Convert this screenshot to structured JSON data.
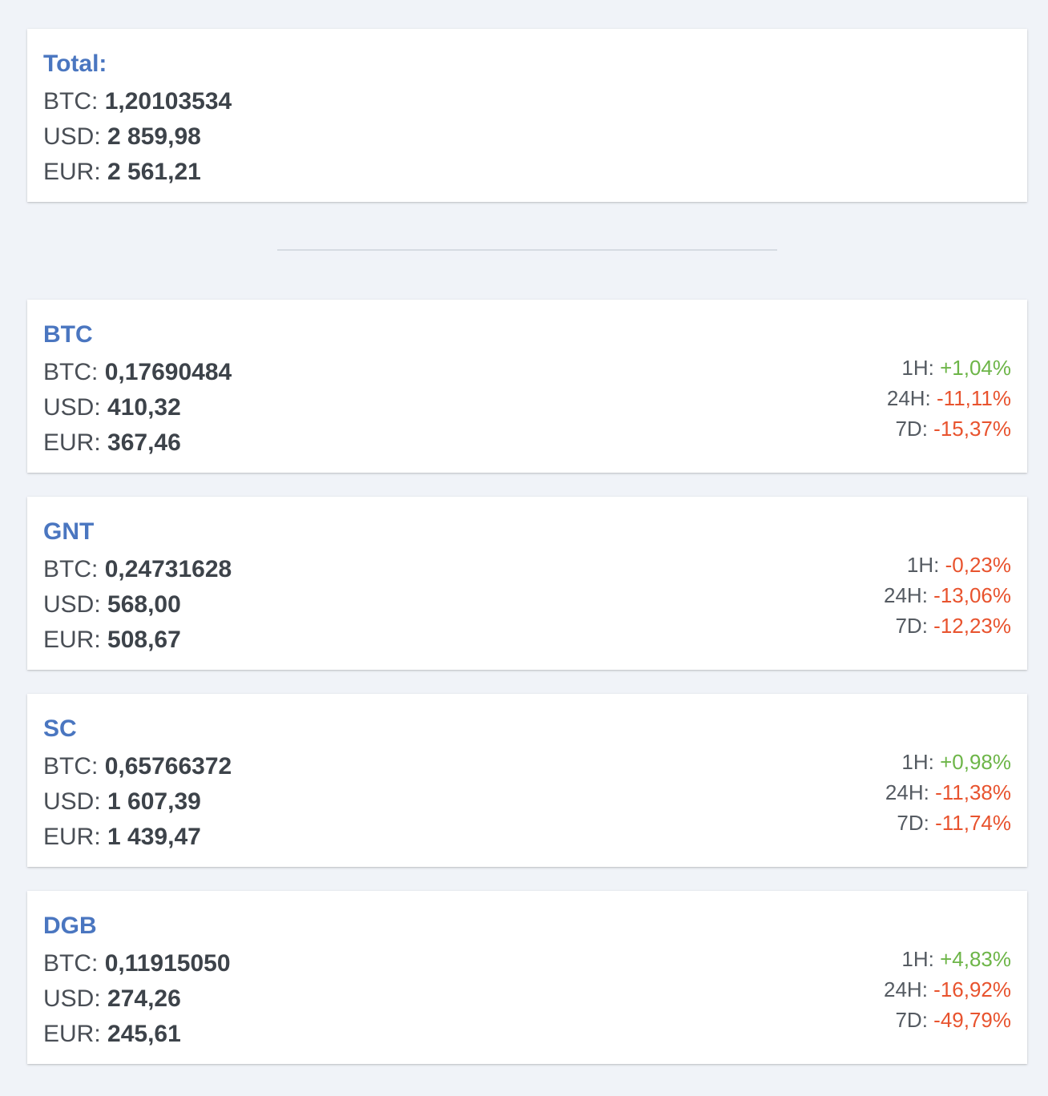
{
  "total": {
    "title": "Total:",
    "rows": [
      {
        "label": "BTC:",
        "value": "1,20103534"
      },
      {
        "label": "USD:",
        "value": "2 859,98"
      },
      {
        "label": "EUR:",
        "value": "2 561,21"
      }
    ]
  },
  "coins": [
    {
      "symbol": "BTC",
      "rows": [
        {
          "label": "BTC:",
          "value": "0,17690484"
        },
        {
          "label": "USD:",
          "value": "410,32"
        },
        {
          "label": "EUR:",
          "value": "367,46"
        }
      ],
      "changes": [
        {
          "label": "1H:",
          "value": "+1,04%",
          "direction": "positive"
        },
        {
          "label": "24H:",
          "value": "-11,11%",
          "direction": "negative"
        },
        {
          "label": "7D:",
          "value": "-15,37%",
          "direction": "negative"
        }
      ]
    },
    {
      "symbol": "GNT",
      "rows": [
        {
          "label": "BTC:",
          "value": "0,24731628"
        },
        {
          "label": "USD:",
          "value": "568,00"
        },
        {
          "label": "EUR:",
          "value": "508,67"
        }
      ],
      "changes": [
        {
          "label": "1H:",
          "value": "-0,23%",
          "direction": "negative"
        },
        {
          "label": "24H:",
          "value": "-13,06%",
          "direction": "negative"
        },
        {
          "label": "7D:",
          "value": "-12,23%",
          "direction": "negative"
        }
      ]
    },
    {
      "symbol": "SC",
      "rows": [
        {
          "label": "BTC:",
          "value": "0,65766372"
        },
        {
          "label": "USD:",
          "value": "1 607,39"
        },
        {
          "label": "EUR:",
          "value": "1 439,47"
        }
      ],
      "changes": [
        {
          "label": "1H:",
          "value": "+0,98%",
          "direction": "positive"
        },
        {
          "label": "24H:",
          "value": "-11,38%",
          "direction": "negative"
        },
        {
          "label": "7D:",
          "value": "-11,74%",
          "direction": "negative"
        }
      ]
    },
    {
      "symbol": "DGB",
      "rows": [
        {
          "label": "BTC:",
          "value": "0,11915050"
        },
        {
          "label": "USD:",
          "value": "274,26"
        },
        {
          "label": "EUR:",
          "value": "245,61"
        }
      ],
      "changes": [
        {
          "label": "1H:",
          "value": "+4,83%",
          "direction": "positive"
        },
        {
          "label": "24H:",
          "value": "-16,92%",
          "direction": "negative"
        },
        {
          "label": "7D:",
          "value": "-49,79%",
          "direction": "negative"
        }
      ]
    }
  ],
  "colors": {
    "title": "#4a76c0",
    "positive": "#6db548",
    "negative": "#e8532e",
    "background": "#f0f3f8"
  }
}
